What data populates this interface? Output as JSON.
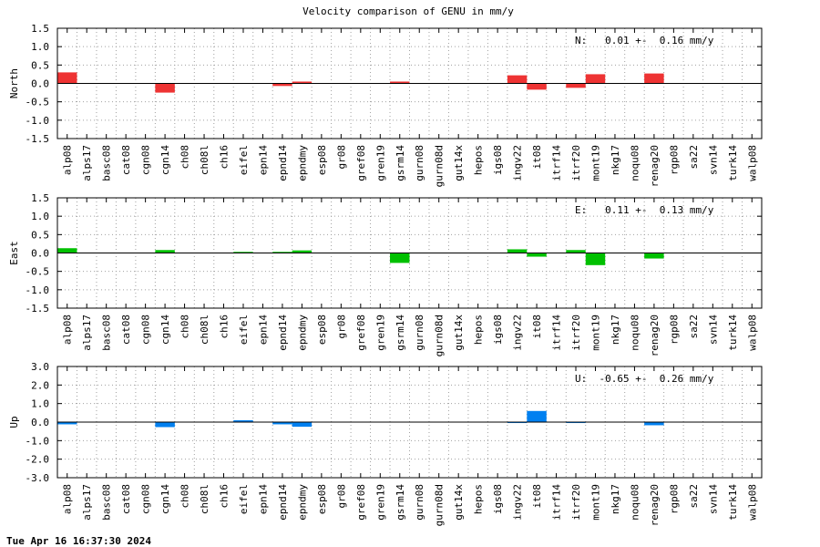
{
  "title": "Velocity comparison of GENU in mm/y",
  "timestamp": "Tue Apr 16 16:37:30 2024",
  "chart_data": [
    {
      "type": "bar",
      "ylabel": "North",
      "ylim": [
        -1.5,
        1.5
      ],
      "yticks": [
        "1.5",
        "1.0",
        "0.5",
        "0.0",
        "-0.5",
        "-1.0",
        "-1.5"
      ],
      "color": "#ee3333",
      "grid": true,
      "annotation": "N:   0.01 +-  0.16 mm/y",
      "annotation_position": "top-right",
      "categories": [
        "alp08",
        "alps17",
        "basc08",
        "cat08",
        "cgn08",
        "cgn14",
        "ch08",
        "ch08l",
        "ch16",
        "eifel",
        "epn14",
        "epnd14",
        "epndmy",
        "esp08",
        "gr08",
        "gref08",
        "gren19",
        "gsrm14",
        "gurn08",
        "gurn08d",
        "gut14x",
        "hepos",
        "igs08",
        "ingv22",
        "it08",
        "itrf14",
        "itrf20",
        "mont19",
        "nkg17",
        "noqu08",
        "renag20",
        "rgp08",
        "sa22",
        "svn14",
        "turk14",
        "walp08"
      ],
      "values": [
        0.3,
        null,
        null,
        null,
        null,
        -0.25,
        null,
        null,
        null,
        null,
        null,
        -0.07,
        0.05,
        null,
        null,
        null,
        null,
        0.05,
        null,
        null,
        null,
        null,
        null,
        0.22,
        -0.17,
        null,
        -0.12,
        0.25,
        null,
        null,
        0.27,
        null,
        null,
        null,
        null,
        null
      ]
    },
    {
      "type": "bar",
      "ylabel": "East",
      "ylim": [
        -1.5,
        1.5
      ],
      "yticks": [
        "1.5",
        "1.0",
        "0.5",
        "0.0",
        "-0.5",
        "-1.0",
        "-1.5"
      ],
      "color": "#00c000",
      "grid": true,
      "annotation": "E:   0.11 +-  0.13 mm/y",
      "annotation_position": "top-right",
      "categories": [
        "alp08",
        "alps17",
        "basc08",
        "cat08",
        "cgn08",
        "cgn14",
        "ch08",
        "ch08l",
        "ch16",
        "eifel",
        "epn14",
        "epnd14",
        "epndmy",
        "esp08",
        "gr08",
        "gref08",
        "gren19",
        "gsrm14",
        "gurn08",
        "gurn08d",
        "gut14x",
        "hepos",
        "igs08",
        "ingv22",
        "it08",
        "itrf14",
        "itrf20",
        "mont19",
        "nkg17",
        "noqu08",
        "renag20",
        "rgp08",
        "sa22",
        "svn14",
        "turk14",
        "walp08"
      ],
      "values": [
        0.13,
        null,
        null,
        null,
        null,
        0.08,
        null,
        null,
        null,
        0.03,
        null,
        0.03,
        0.07,
        null,
        null,
        null,
        null,
        -0.27,
        null,
        null,
        null,
        null,
        null,
        0.1,
        -0.1,
        null,
        0.08,
        -0.33,
        null,
        null,
        -0.15,
        null,
        null,
        null,
        null,
        null
      ]
    },
    {
      "type": "bar",
      "ylabel": "Up",
      "ylim": [
        -3.0,
        3.0
      ],
      "yticks": [
        "3.0",
        "2.0",
        "1.0",
        "0.0",
        "-1.0",
        "-2.0",
        "-3.0"
      ],
      "color": "#0080f0",
      "grid": true,
      "annotation": "U:  -0.65 +-  0.26 mm/y",
      "annotation_position": "top-right",
      "categories": [
        "alp08",
        "alps17",
        "basc08",
        "cat08",
        "cgn08",
        "cgn14",
        "ch08",
        "ch08l",
        "ch16",
        "eifel",
        "epn14",
        "epnd14",
        "epndmy",
        "esp08",
        "gr08",
        "gref08",
        "gren19",
        "gsrm14",
        "gurn08",
        "gurn08d",
        "gut14x",
        "hepos",
        "igs08",
        "ingv22",
        "it08",
        "itrf14",
        "itrf20",
        "mont19",
        "nkg17",
        "noqu08",
        "renag20",
        "rgp08",
        "sa22",
        "svn14",
        "turk14",
        "walp08"
      ],
      "values": [
        -0.12,
        null,
        null,
        null,
        null,
        -0.27,
        null,
        null,
        null,
        0.1,
        null,
        -0.12,
        -0.25,
        null,
        null,
        null,
        null,
        null,
        null,
        null,
        null,
        null,
        null,
        -0.05,
        0.6,
        null,
        -0.05,
        null,
        null,
        null,
        -0.17,
        null,
        null,
        null,
        null,
        null
      ]
    }
  ]
}
